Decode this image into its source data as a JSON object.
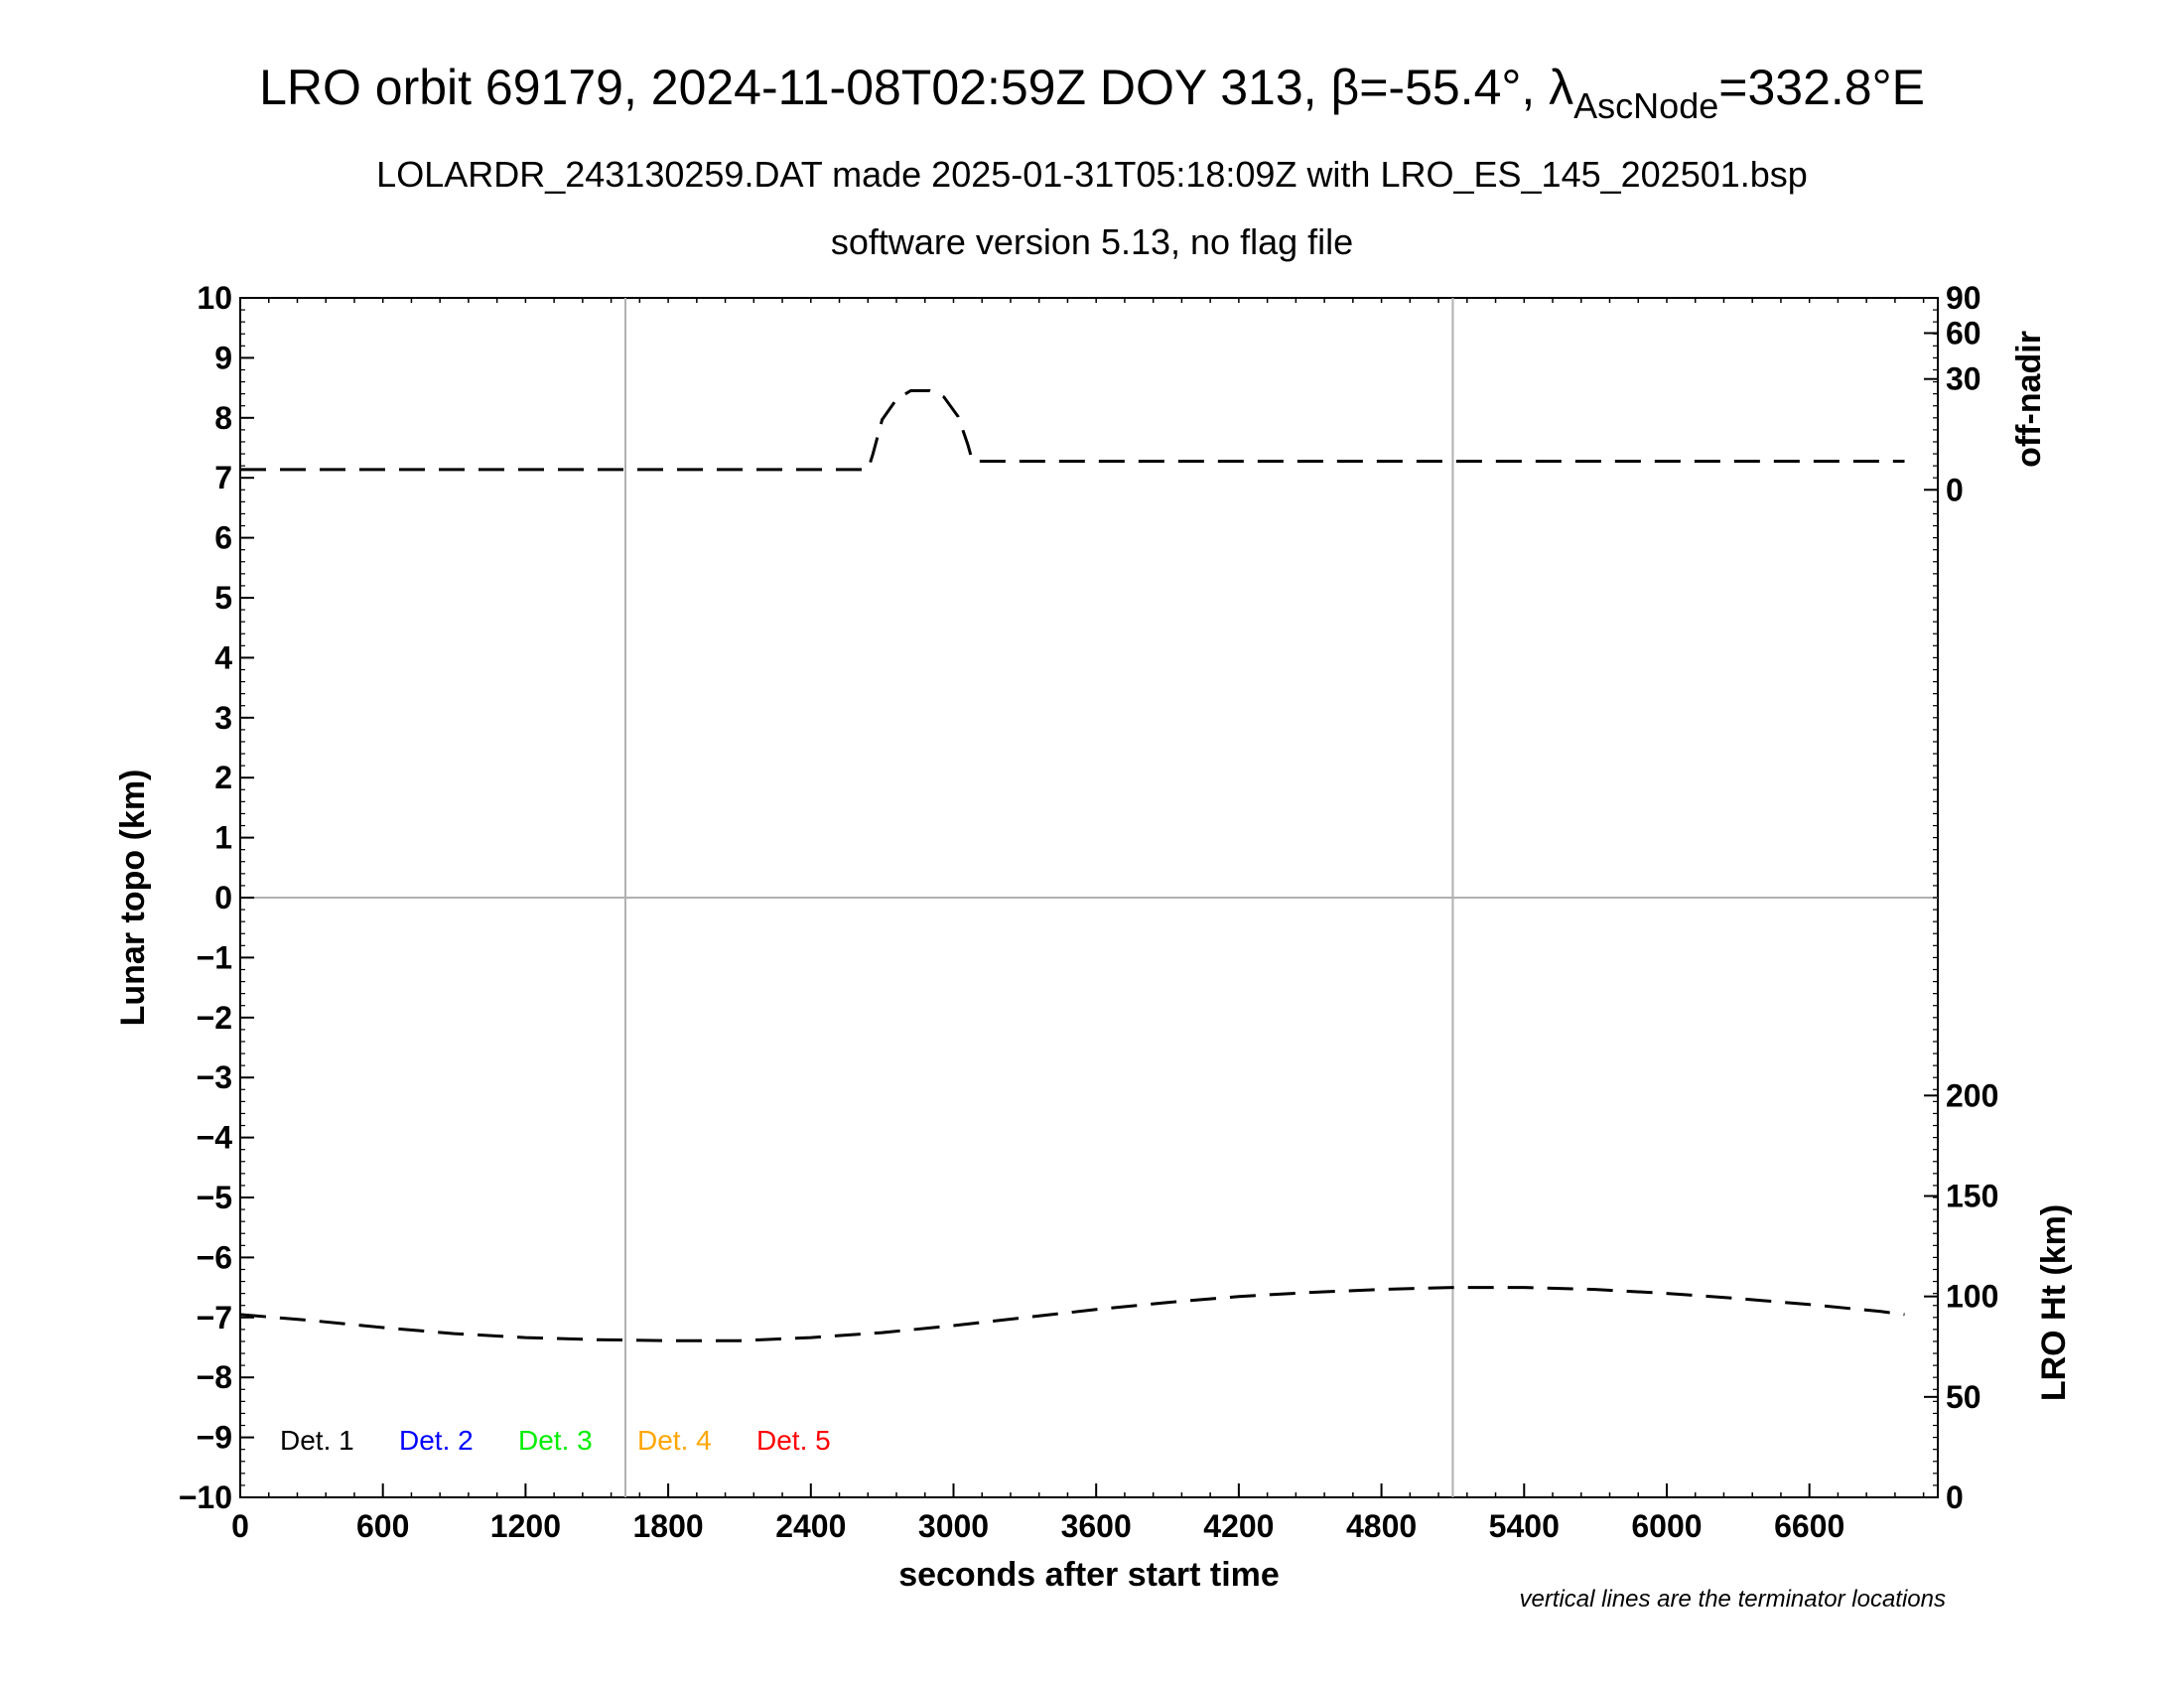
{
  "title": {
    "prefix": "LRO orbit 69179, 2024-11-08T02:59Z DOY 313, ",
    "beta_symbol": "β",
    "beta_value": "=-55.4°, ",
    "lambda_symbol": "λ",
    "lambda_subscript": "AscNode",
    "lambda_value": "=332.8°E"
  },
  "subtitle": "LOLARDR_243130259.DAT made 2025-01-31T05:18:09Z with LRO_ES_145_202501.bsp",
  "subtitle2": "software version 5.13, no flag file",
  "note": "vertical lines are the terminator locations",
  "chart_data": {
    "type": "line",
    "xlabel": "seconds after start time",
    "ylabel": "Lunar topo (km)",
    "y2_upper_label": "off-nadir",
    "y2_lower_label": "LRO Ht (km)",
    "xlim": [
      0,
      7140
    ],
    "ylim": [
      -10,
      10
    ],
    "x_ticks": [
      0,
      600,
      1200,
      1800,
      2400,
      3000,
      3600,
      4200,
      4800,
      5400,
      6000,
      6600
    ],
    "y_ticks": [
      "10",
      "9",
      "8",
      "7",
      "6",
      "5",
      "4",
      "3",
      "2",
      "1",
      "0",
      "−1",
      "−2",
      "−3",
      "−4",
      "−5",
      "−6",
      "−7",
      "−8",
      "−9",
      "−10"
    ],
    "y_tick_values": [
      10,
      9,
      8,
      7,
      6,
      5,
      4,
      3,
      2,
      1,
      0,
      -1,
      -2,
      -3,
      -4,
      -5,
      -6,
      -7,
      -8,
      -9,
      -10
    ],
    "off_nadir_ticks": [
      {
        "label": "90",
        "value": 90
      },
      {
        "label": "60",
        "value": 60
      },
      {
        "label": "30",
        "value": 30
      },
      {
        "label": "0",
        "value": 0
      }
    ],
    "lro_ht_ticks": [
      {
        "label": "200",
        "value": 200
      },
      {
        "label": "150",
        "value": 150
      },
      {
        "label": "100",
        "value": 100
      },
      {
        "label": "50",
        "value": 50
      },
      {
        "label": "0",
        "value": 0
      }
    ],
    "terminator_lines_x": [
      1620,
      5100
    ],
    "grid": "terminator lines and zero line only",
    "legend": {
      "placement": "bottom-left",
      "entries": [
        {
          "label": "Det. 1",
          "color": "#000000"
        },
        {
          "label": "Det. 2",
          "color": "#0000ff"
        },
        {
          "label": "Det. 3",
          "color": "#00ee00"
        },
        {
          "label": "Det. 4",
          "color": "#ffa500"
        },
        {
          "label": "Det. 5",
          "color": "#ff0000"
        }
      ]
    },
    "series": [
      {
        "axis": "off_nadir_deg",
        "style": "dashed",
        "color": "#000000",
        "x": [
          0,
          600,
          1200,
          1800,
          2400,
          2640,
          2660,
          2700,
          2760,
          2820,
          2900,
          2960,
          3020,
          3060,
          3080,
          3100,
          3600,
          4200,
          4800,
          5400,
          6000,
          6600,
          7000
        ],
        "values": [
          1,
          1,
          1,
          1,
          1,
          1,
          3,
          12,
          20,
          24,
          24,
          21,
          13,
          5,
          2,
          2,
          2,
          2,
          2,
          2,
          2,
          2,
          2
        ]
      },
      {
        "axis": "lro_ht_km",
        "style": "dashed",
        "color": "#000000",
        "x": [
          0,
          300,
          600,
          900,
          1200,
          1500,
          1800,
          2100,
          2400,
          2700,
          3000,
          3300,
          3600,
          3900,
          4200,
          4500,
          4800,
          5100,
          5400,
          5700,
          6000,
          6300,
          6600,
          6900,
          7000
        ],
        "values": [
          91,
          88,
          84.5,
          81.5,
          79.5,
          78.5,
          78,
          78,
          79.5,
          82,
          85.5,
          89.5,
          93.5,
          97,
          100,
          102,
          103.5,
          104.5,
          104.5,
          103.5,
          101.5,
          99,
          96,
          92.5,
          91
        ]
      }
    ]
  }
}
